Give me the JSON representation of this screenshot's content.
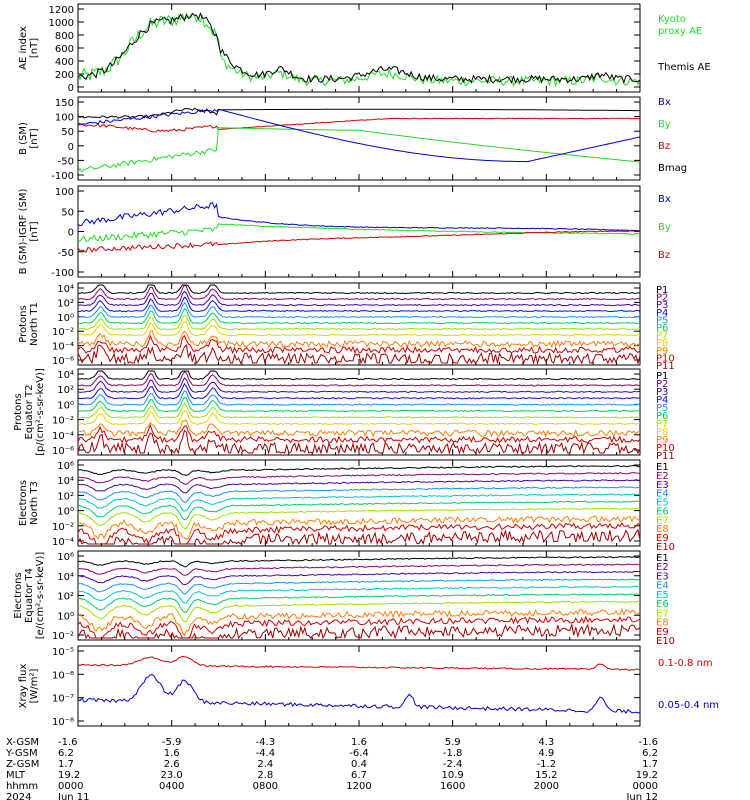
{
  "colors": {
    "black": "#000000",
    "red": "#d20000",
    "green": "#22dd22",
    "blue": "#0000cc",
    "ae_green": "#22dd22",
    "channel_palette": [
      "#000000",
      "#8a0070",
      "#4a00a0",
      "#1010e0",
      "#1a90ff",
      "#00c8c8",
      "#00d060",
      "#a0e000",
      "#f0d000",
      "#ff8000",
      "#d00000",
      "#a00000"
    ]
  },
  "chart_data": [
    {
      "type": "line",
      "ylabel": [
        "AE index",
        "[nT]"
      ],
      "yticks": [
        "1200",
        "1000",
        "800",
        "600",
        "400",
        "200",
        "0"
      ],
      "ylim": [
        0,
        1250
      ],
      "series": [
        {
          "name": "Kyoto proxy AE",
          "color": "#22dd22"
        },
        {
          "name": "Themis AE",
          "color": "#000000"
        }
      ],
      "legend_lines": [
        [
          "Kyoto",
          "proxy AE"
        ],
        [
          "Themis AE"
        ]
      ]
    },
    {
      "type": "line",
      "ylabel": [
        "B (SM)",
        "[nT]"
      ],
      "yticks": [
        "150",
        "100",
        "50",
        "0",
        "-50",
        "-100"
      ],
      "ylim": [
        -110,
        160
      ],
      "series": [
        {
          "name": "Bx",
          "color": "#0000cc"
        },
        {
          "name": "By",
          "color": "#22dd22"
        },
        {
          "name": "Bz",
          "color": "#d20000"
        },
        {
          "name": "Bmag",
          "color": "#000000"
        }
      ]
    },
    {
      "type": "line",
      "ylabel": [
        "B (SM)-IGRF (SM)",
        "[nT]"
      ],
      "yticks": [
        "100",
        "50",
        "0",
        "-50",
        "-100"
      ],
      "ylim": [
        -110,
        110
      ],
      "series": [
        {
          "name": "Bx",
          "color": "#0000cc"
        },
        {
          "name": "By",
          "color": "#22dd22"
        },
        {
          "name": "Bz",
          "color": "#d20000"
        }
      ]
    },
    {
      "type": "line",
      "log": true,
      "ylabel": [
        "Protons",
        "North T1"
      ],
      "yticks": [
        "10⁴",
        "10²",
        "10⁰",
        "10⁻²",
        "10⁻⁴",
        "10⁻⁶"
      ],
      "channels": [
        "P1",
        "P2",
        "P3",
        "P4",
        "P5",
        "P6",
        "P7",
        "P8",
        "P9",
        "P10",
        "P11"
      ]
    },
    {
      "type": "line",
      "log": true,
      "ylabel": [
        "Protons",
        "Equator T2",
        "[p/(cm²-s-sr-keV)]"
      ],
      "yticks": [
        "10⁴",
        "10²",
        "10⁰",
        "10⁻²",
        "10⁻⁴",
        "10⁻⁶"
      ],
      "channels": [
        "P1",
        "P2",
        "P3",
        "P4",
        "P5",
        "P6",
        "P7",
        "P8",
        "P9",
        "P10",
        "P11"
      ]
    },
    {
      "type": "line",
      "log": true,
      "ylabel": [
        "Electrons",
        "North T3"
      ],
      "yticks": [
        "10⁶",
        "10⁴",
        "10²",
        "10⁰",
        "10⁻²",
        "10⁻⁴"
      ],
      "channels": [
        "E1",
        "E2",
        "E3",
        "E4",
        "E5",
        "E6",
        "E7",
        "E8",
        "E9",
        "E10"
      ]
    },
    {
      "type": "line",
      "log": true,
      "ylabel": [
        "Electrons",
        "Equator T4",
        "[e/(cm²-s-sr-keV)]"
      ],
      "yticks": [
        "10⁶",
        "10⁴",
        "10²",
        "10⁰",
        "10⁻²"
      ],
      "channels": [
        "E1",
        "E2",
        "E3",
        "E4",
        "E5",
        "E6",
        "E7",
        "E8",
        "E9",
        "E10"
      ]
    },
    {
      "type": "line",
      "log": true,
      "ylabel": [
        "Xray flux",
        "[W/m²]"
      ],
      "yticks": [
        "10⁻⁵",
        "10⁻⁶",
        "10⁻⁷",
        "10⁻⁸"
      ],
      "series": [
        {
          "name": "0.1-0.8 nm",
          "color": "#d20000"
        },
        {
          "name": "0.05-0.4 nm",
          "color": "#0000cc"
        }
      ]
    }
  ],
  "bottom_axis": {
    "row_labels": [
      "X-GSM",
      "Y-GSM",
      "Z-GSM",
      "MLT",
      "hhmm",
      "2024"
    ],
    "columns": [
      [
        "-1.6",
        "6.2",
        "1.7",
        "19.2",
        "0000",
        "Jun 11"
      ],
      [
        "-5.9",
        "1.6",
        "2.6",
        "23.0",
        "0400",
        ""
      ],
      [
        "-4.3",
        "-4.4",
        "2.4",
        "2.8",
        "0800",
        ""
      ],
      [
        "1.6",
        "-6.4",
        "0.4",
        "6.7",
        "1200",
        ""
      ],
      [
        "5.9",
        "-1.8",
        "-2.4",
        "10.9",
        "1600",
        ""
      ],
      [
        "4.3",
        "4.9",
        "-1.2",
        "15.2",
        "2000",
        ""
      ],
      [
        "-1.6",
        "6.2",
        "1.7",
        "19.2",
        "0000",
        "Jun 12"
      ]
    ]
  }
}
